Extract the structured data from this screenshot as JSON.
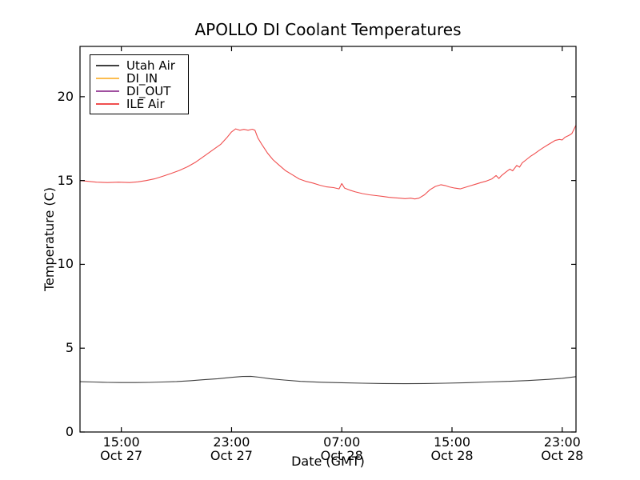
{
  "chart_data": {
    "type": "line",
    "title": "APOLLO DI Coolant Temperatures",
    "xlabel": "Date (GMT)",
    "ylabel": "Temperature (C)",
    "background_color": "#ffffff",
    "frame_color": "#000000",
    "grid": false,
    "legend_position": "upper left",
    "x_unit": "hours since Oct 27 12:00 GMT",
    "xlim": [
      0,
      36
    ],
    "ylim": [
      0,
      23
    ],
    "ytick_values": [
      0,
      5,
      10,
      15,
      20
    ],
    "ytick_labels": [
      "0",
      "5",
      "10",
      "15",
      "20"
    ],
    "xticks": [
      {
        "hour": 3,
        "time": "15:00",
        "date": "Oct 27"
      },
      {
        "hour": 11,
        "time": "23:00",
        "date": "Oct 27"
      },
      {
        "hour": 19,
        "time": "07:00",
        "date": "Oct 28"
      },
      {
        "hour": 27,
        "time": "15:00",
        "date": "Oct 28"
      },
      {
        "hour": 35,
        "time": "23:00",
        "date": "Oct 28"
      }
    ],
    "series": [
      {
        "name": "Utah Air",
        "color": "#404040",
        "points": [
          [
            0,
            3.0
          ],
          [
            1,
            2.98
          ],
          [
            2,
            2.96
          ],
          [
            3,
            2.95
          ],
          [
            4,
            2.95
          ],
          [
            5,
            2.96
          ],
          [
            6,
            2.98
          ],
          [
            7,
            3.01
          ],
          [
            8,
            3.06
          ],
          [
            9,
            3.12
          ],
          [
            10,
            3.18
          ],
          [
            11,
            3.26
          ],
          [
            11.8,
            3.31
          ],
          [
            12.4,
            3.32
          ],
          [
            13,
            3.27
          ],
          [
            13.8,
            3.18
          ],
          [
            14.8,
            3.1
          ],
          [
            16,
            3.02
          ],
          [
            17.5,
            2.97
          ],
          [
            19,
            2.94
          ],
          [
            20.5,
            2.91
          ],
          [
            22,
            2.89
          ],
          [
            23.5,
            2.88
          ],
          [
            25,
            2.89
          ],
          [
            26.5,
            2.91
          ],
          [
            28,
            2.94
          ],
          [
            29.5,
            2.98
          ],
          [
            31,
            3.02
          ],
          [
            32.5,
            3.07
          ],
          [
            34,
            3.14
          ],
          [
            35,
            3.2
          ],
          [
            36,
            3.3
          ]
        ]
      },
      {
        "name": "DI_IN",
        "color": "#fcbd50",
        "points": [],
        "note": "legend entry only; line not visible in plot area"
      },
      {
        "name": "DI_OUT",
        "color": "#a050a0",
        "points": [],
        "note": "legend entry only; line not visible in plot area"
      },
      {
        "name": "ILE Air",
        "color": "#f04f4f",
        "points": [
          [
            0,
            15.0
          ],
          [
            0.6,
            14.95
          ],
          [
            1.2,
            14.9
          ],
          [
            2,
            14.88
          ],
          [
            2.8,
            14.9
          ],
          [
            3.6,
            14.88
          ],
          [
            4.2,
            14.92
          ],
          [
            4.8,
            15.0
          ],
          [
            5.4,
            15.1
          ],
          [
            6,
            15.25
          ],
          [
            6.6,
            15.42
          ],
          [
            7.2,
            15.6
          ],
          [
            7.8,
            15.82
          ],
          [
            8.4,
            16.1
          ],
          [
            9,
            16.45
          ],
          [
            9.6,
            16.8
          ],
          [
            10.2,
            17.15
          ],
          [
            10.7,
            17.6
          ],
          [
            11,
            17.9
          ],
          [
            11.3,
            18.08
          ],
          [
            11.6,
            18.0
          ],
          [
            11.9,
            18.05
          ],
          [
            12.2,
            18.0
          ],
          [
            12.5,
            18.06
          ],
          [
            12.7,
            18.0
          ],
          [
            12.9,
            17.55
          ],
          [
            13.2,
            17.15
          ],
          [
            13.6,
            16.65
          ],
          [
            14,
            16.25
          ],
          [
            14.4,
            15.95
          ],
          [
            14.9,
            15.6
          ],
          [
            15.4,
            15.35
          ],
          [
            15.9,
            15.1
          ],
          [
            16.4,
            14.95
          ],
          [
            16.9,
            14.85
          ],
          [
            17.4,
            14.72
          ],
          [
            17.9,
            14.62
          ],
          [
            18.4,
            14.58
          ],
          [
            18.8,
            14.5
          ],
          [
            19,
            14.82
          ],
          [
            19.2,
            14.55
          ],
          [
            19.6,
            14.42
          ],
          [
            20,
            14.32
          ],
          [
            20.5,
            14.22
          ],
          [
            21,
            14.15
          ],
          [
            21.5,
            14.1
          ],
          [
            22,
            14.05
          ],
          [
            22.4,
            14.0
          ],
          [
            22.8,
            13.97
          ],
          [
            23.2,
            13.95
          ],
          [
            23.6,
            13.92
          ],
          [
            24,
            13.95
          ],
          [
            24.3,
            13.9
          ],
          [
            24.6,
            13.95
          ],
          [
            25,
            14.15
          ],
          [
            25.4,
            14.45
          ],
          [
            25.8,
            14.65
          ],
          [
            26.2,
            14.75
          ],
          [
            26.5,
            14.7
          ],
          [
            26.8,
            14.62
          ],
          [
            27.2,
            14.55
          ],
          [
            27.6,
            14.5
          ],
          [
            27.9,
            14.58
          ],
          [
            28.3,
            14.68
          ],
          [
            28.7,
            14.78
          ],
          [
            29.1,
            14.88
          ],
          [
            29.5,
            14.97
          ],
          [
            29.9,
            15.1
          ],
          [
            30.2,
            15.3
          ],
          [
            30.4,
            15.12
          ],
          [
            30.6,
            15.3
          ],
          [
            30.9,
            15.5
          ],
          [
            31.2,
            15.68
          ],
          [
            31.4,
            15.58
          ],
          [
            31.7,
            15.9
          ],
          [
            31.9,
            15.8
          ],
          [
            32.1,
            16.05
          ],
          [
            32.4,
            16.25
          ],
          [
            32.7,
            16.45
          ],
          [
            33,
            16.6
          ],
          [
            33.3,
            16.78
          ],
          [
            33.6,
            16.95
          ],
          [
            33.9,
            17.1
          ],
          [
            34.2,
            17.25
          ],
          [
            34.5,
            17.4
          ],
          [
            34.8,
            17.45
          ],
          [
            35,
            17.42
          ],
          [
            35.2,
            17.58
          ],
          [
            35.5,
            17.7
          ],
          [
            35.7,
            17.8
          ],
          [
            35.85,
            18.05
          ],
          [
            36,
            18.3
          ]
        ]
      }
    ]
  }
}
